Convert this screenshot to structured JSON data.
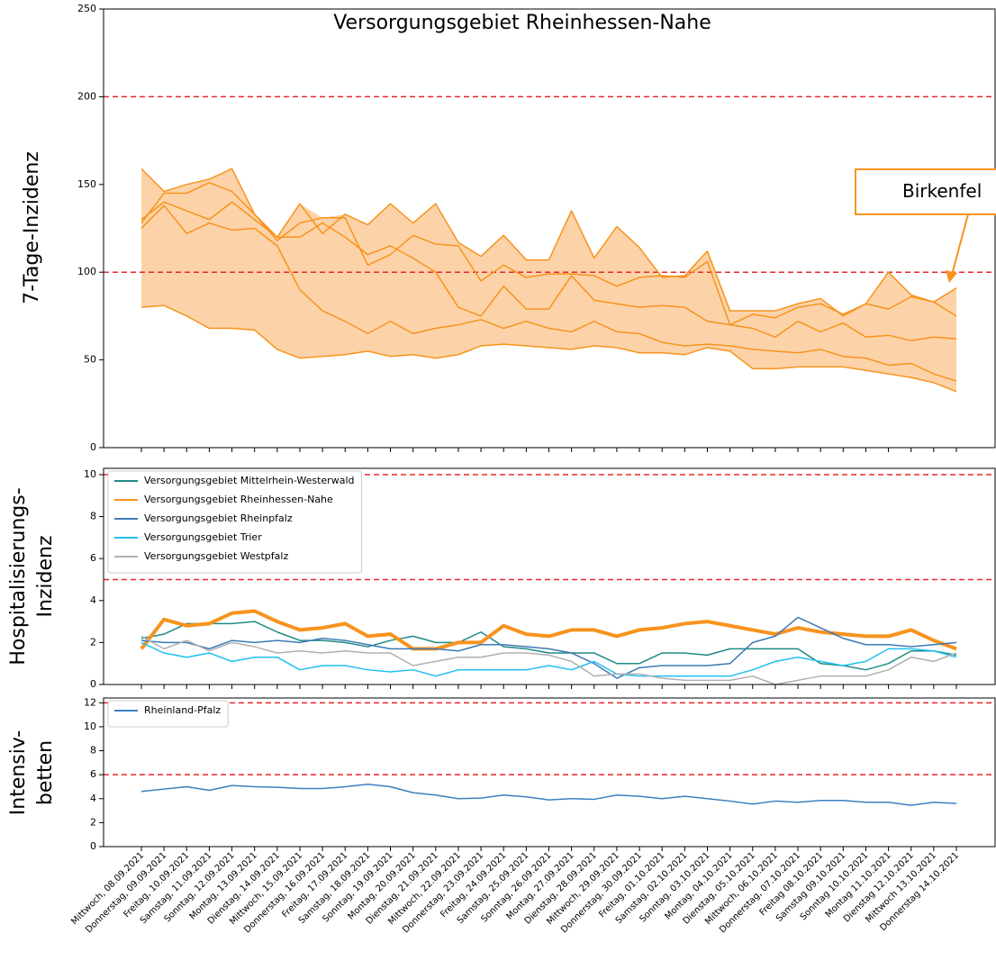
{
  "chart_data": [
    {
      "type": "line",
      "title": "Versorgungsgebiet Rheinhessen-Nahe",
      "ylabel": "7-Tage-Inzidenz",
      "ylim": [
        0,
        250
      ],
      "yticks": [
        0,
        50,
        100,
        150,
        200,
        250
      ],
      "hlines": [
        100,
        200
      ],
      "hline_color": "#e8262a",
      "band": true,
      "band_color": "#fcd3a8",
      "annotation": "Birkenfel",
      "series": [
        {
          "color": "#f7931e",
          "values": [
            159,
            146,
            150,
            153,
            159,
            133,
            120,
            139,
            122,
            133,
            127,
            139,
            128,
            139,
            117,
            109,
            121,
            107,
            107,
            135,
            108,
            126,
            114,
            97,
            98,
            112,
            78,
            78,
            78,
            82,
            85,
            75,
            82,
            100,
            87,
            83,
            91
          ]
        },
        {
          "color": "#f7931e",
          "values": [
            128,
            145,
            145,
            151,
            146,
            133,
            118,
            128,
            131,
            131,
            104,
            110,
            121,
            116,
            115,
            95,
            104,
            97,
            99,
            99,
            98,
            92,
            97,
            98,
            97,
            106,
            70,
            76,
            74,
            80,
            82,
            76,
            82,
            79,
            86,
            83,
            75
          ]
        },
        {
          "color": "#f7931e",
          "values": [
            130,
            140,
            135,
            130,
            140,
            130,
            120,
            120,
            128,
            120,
            110,
            115,
            108,
            100,
            80,
            75,
            92,
            79,
            79,
            98,
            84,
            82,
            80,
            81,
            80,
            72,
            70,
            68,
            63,
            72,
            66,
            71,
            63,
            64,
            61,
            63,
            62
          ]
        },
        {
          "color": "#f7931e",
          "values": [
            125,
            138,
            122,
            128,
            124,
            125,
            115,
            90,
            78,
            72,
            65,
            72,
            65,
            68,
            70,
            73,
            68,
            72,
            68,
            66,
            72,
            66,
            65,
            60,
            58,
            59,
            58,
            56,
            55,
            54,
            56,
            52,
            51,
            47,
            48,
            42,
            38
          ]
        },
        {
          "color": "#f7931e",
          "values": [
            80,
            81,
            75,
            68,
            68,
            67,
            56,
            51,
            52,
            53,
            55,
            52,
            53,
            51,
            53,
            58,
            59,
            58,
            57,
            56,
            58,
            57,
            54,
            54,
            53,
            57,
            55,
            45,
            45,
            46,
            46,
            46,
            44,
            42,
            40,
            37,
            32
          ]
        }
      ]
    },
    {
      "type": "line",
      "ylabel": [
        "Hospitalisierungs-",
        "Inzidenz"
      ],
      "ylim": [
        0,
        10.3
      ],
      "yticks": [
        0,
        2,
        4,
        6,
        8,
        10
      ],
      "hlines": [
        5,
        10
      ],
      "hline_color": "#e8262a",
      "legend": "upper left",
      "series": [
        {
          "name": "Versorgungsgebiet Mittelrhein-Westerwald",
          "color": "#1f8a85",
          "values": [
            2.2,
            2.4,
            2.9,
            2.9,
            2.9,
            3.0,
            2.5,
            2.1,
            2.1,
            2.0,
            1.8,
            2.1,
            2.3,
            2.0,
            2.0,
            2.5,
            1.8,
            1.7,
            1.5,
            1.5,
            1.5,
            1.0,
            1.0,
            1.5,
            1.5,
            1.4,
            1.7,
            1.7,
            1.7,
            1.7,
            1.0,
            0.9,
            0.7,
            1.0,
            1.6,
            1.6,
            1.4
          ]
        },
        {
          "name": "Versorgungsgebiet Rheinhessen-Nahe",
          "color": "#f7931e",
          "linewidth": 4,
          "values": [
            1.7,
            3.1,
            2.8,
            2.9,
            3.4,
            3.5,
            3.0,
            2.6,
            2.7,
            2.9,
            2.3,
            2.4,
            1.7,
            1.7,
            2.0,
            2.0,
            2.8,
            2.4,
            2.3,
            2.6,
            2.6,
            2.3,
            2.6,
            2.7,
            2.9,
            3.0,
            2.8,
            2.6,
            2.4,
            2.7,
            2.5,
            2.4,
            2.3,
            2.3,
            2.6,
            2.1,
            1.7
          ]
        },
        {
          "name": "Versorgungsgebiet Rheinpfalz",
          "color": "#3d7ab5",
          "values": [
            2.1,
            2.0,
            2.0,
            1.7,
            2.1,
            2.0,
            2.1,
            2.0,
            2.2,
            2.1,
            1.9,
            1.7,
            1.7,
            1.7,
            1.6,
            1.9,
            1.9,
            1.8,
            1.7,
            1.5,
            1.0,
            0.3,
            0.8,
            0.9,
            0.9,
            0.9,
            1.0,
            2.0,
            2.3,
            3.2,
            2.7,
            2.2,
            1.9,
            1.9,
            1.8,
            1.9,
            2.0
          ]
        },
        {
          "name": "Versorgungsgebiet Trier",
          "color": "#1fc0f0",
          "values": [
            2.0,
            1.5,
            1.3,
            1.5,
            1.1,
            1.3,
            1.3,
            0.7,
            0.9,
            0.9,
            0.7,
            0.6,
            0.7,
            0.4,
            0.7,
            0.7,
            0.7,
            0.7,
            0.9,
            0.7,
            1.1,
            0.5,
            0.4,
            0.4,
            0.4,
            0.4,
            0.4,
            0.7,
            1.1,
            1.3,
            1.1,
            0.9,
            1.1,
            1.7,
            1.7,
            1.6,
            1.3
          ]
        },
        {
          "name": "Versorgungsgebiet Westpfalz",
          "color": "#b0b0b0",
          "values": [
            2.3,
            1.7,
            2.1,
            1.6,
            2.0,
            1.8,
            1.5,
            1.6,
            1.5,
            1.6,
            1.5,
            1.5,
            0.9,
            1.1,
            1.3,
            1.3,
            1.5,
            1.5,
            1.4,
            1.1,
            0.4,
            0.5,
            0.5,
            0.3,
            0.2,
            0.2,
            0.2,
            0.4,
            0.0,
            0.2,
            0.4,
            0.4,
            0.4,
            0.7,
            1.3,
            1.1,
            1.5
          ]
        }
      ]
    },
    {
      "type": "line",
      "ylabel": [
        "Intensiv-",
        "betten"
      ],
      "ylim": [
        0,
        12.4
      ],
      "yticks": [
        0,
        2,
        4,
        6,
        8,
        10,
        12
      ],
      "hlines": [
        6,
        12
      ],
      "hline_color": "#e8262a",
      "legend": "upper left",
      "categories": [
        "Mittwoch, 08.09.2021",
        "Donnerstag, 09.09.2021",
        "Freitag, 10.09.2021",
        "Samstag, 11.09.2021",
        "Sonntag, 12.09.2021",
        "Montag, 13.09.2021",
        "Dienstag, 14.09.2021",
        "Mittwoch, 15.09.2021",
        "Donnerstag, 16.09.2021",
        "Freitag, 17.09.2021",
        "Samstag, 18.09.2021",
        "Sonntag, 19.09.2021",
        "Montag, 20.09.2021",
        "Dienstag, 21.09.2021",
        "Mittwoch, 22.09.2021",
        "Donnerstag, 23.09.2021",
        "Freitag, 24.09.2021",
        "Samstag, 25.09.2021",
        "Sonntag, 26.09.2021",
        "Montag, 27.09.2021",
        "Dienstag, 28.09.2021",
        "Mittwoch, 29.09.2021",
        "Donnerstag, 30.09.2021",
        "Freitag, 01.10.2021",
        "Samstag, 02.10.2021",
        "Sonntag, 03.10.2021",
        "Montag, 04.10.2021",
        "Dienstag, 05.10.2021",
        "Mittwoch, 06.10.2021",
        "Donnerstag, 07.10.2021",
        "Freitag 08.10.2021",
        "Samstag 09.10.2021",
        "Sonntag 10.10.2021",
        "Montag 11.10.2021",
        "Dienstag 12.10.2021",
        "Mittwoch 13.10.2021",
        "Donnerstag 14.10.2021"
      ],
      "series": [
        {
          "name": "Rheinland-Pfalz",
          "color": "#3b80c0",
          "values": [
            4.6,
            4.8,
            5.0,
            4.7,
            5.1,
            5.0,
            4.95,
            4.85,
            4.85,
            5.0,
            5.2,
            5.0,
            4.5,
            4.3,
            4.0,
            4.05,
            4.3,
            4.15,
            3.9,
            4.0,
            3.95,
            4.3,
            4.2,
            4.0,
            4.2,
            4.0,
            3.8,
            3.55,
            3.8,
            3.7,
            3.85,
            3.85,
            3.7,
            3.7,
            3.45,
            3.7,
            3.6
          ]
        }
      ]
    }
  ]
}
